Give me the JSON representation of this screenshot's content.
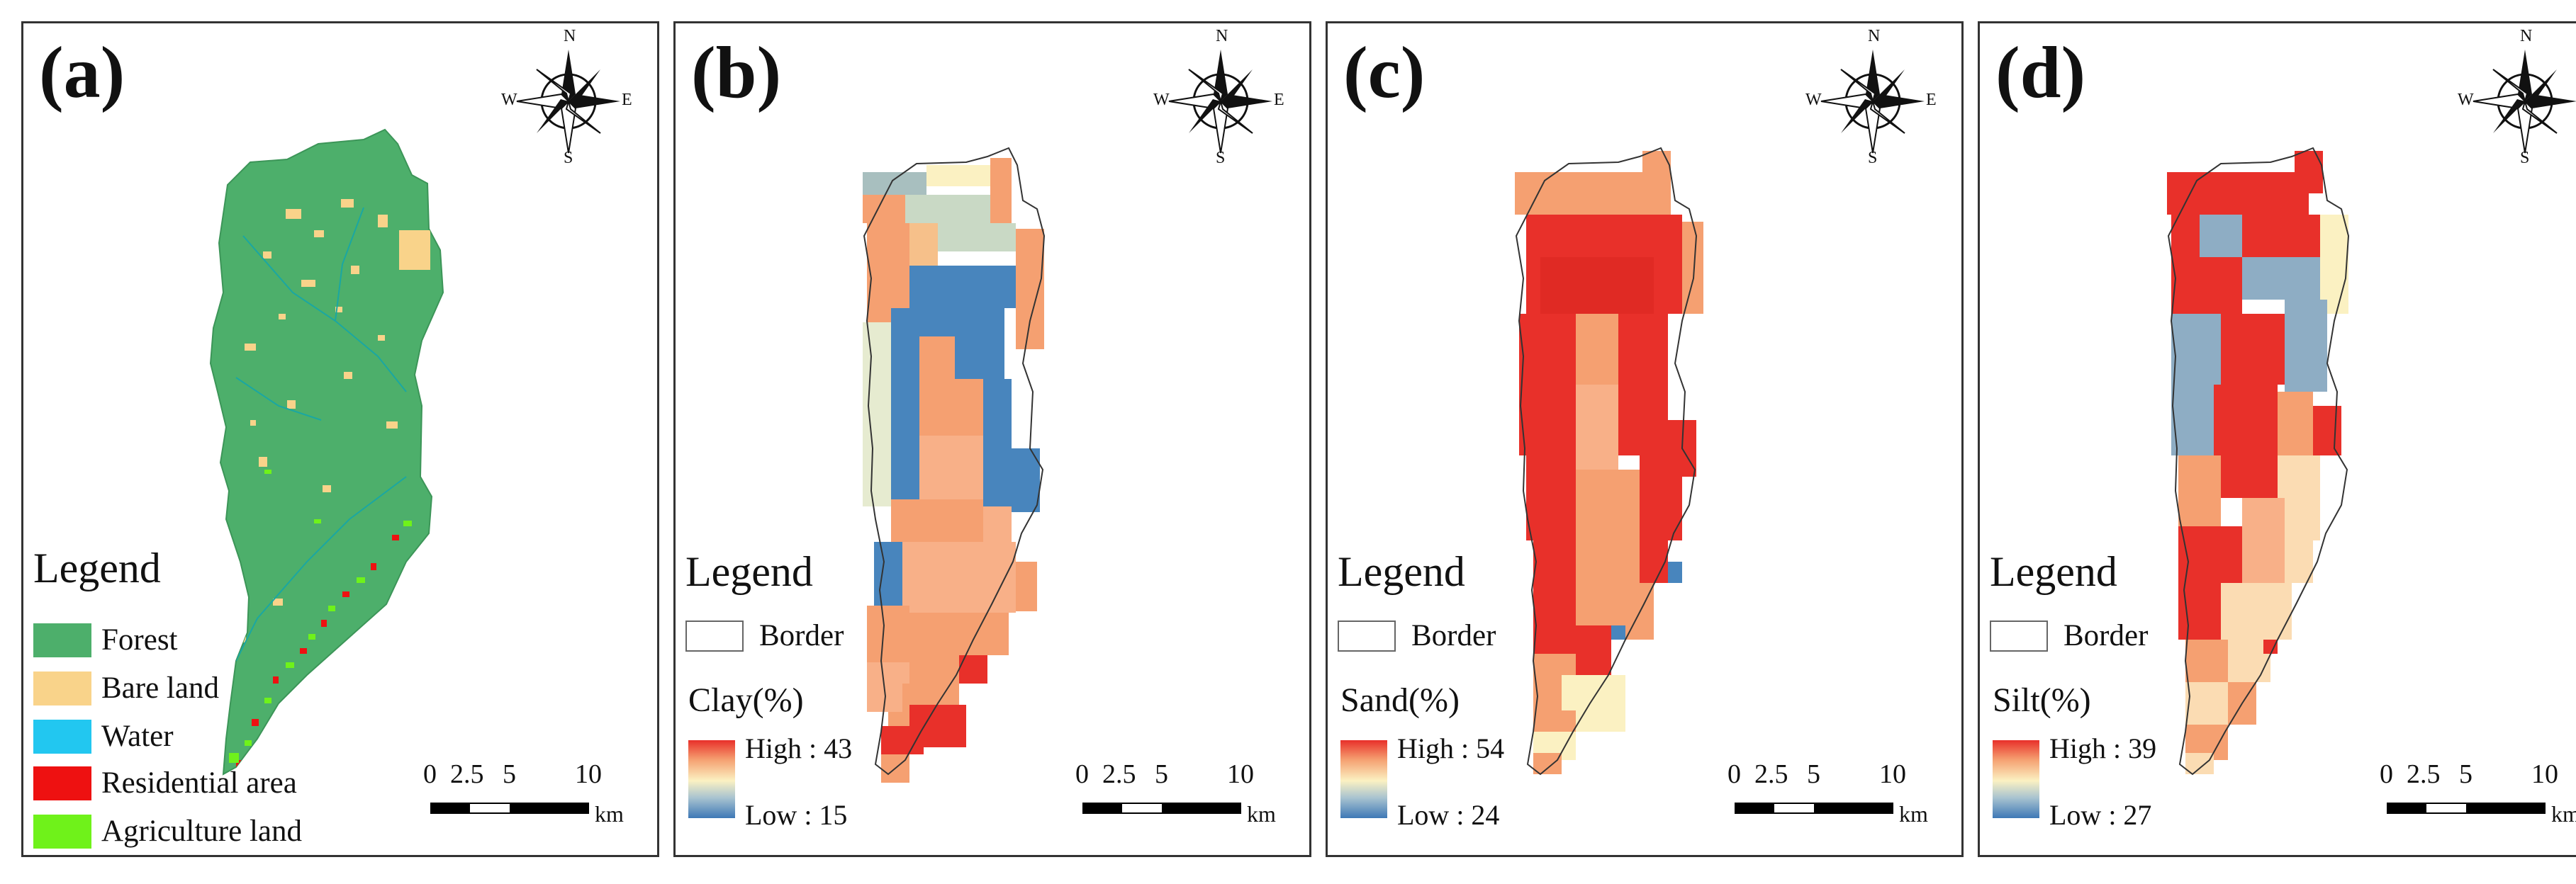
{
  "panels": [
    {
      "label": "(a)",
      "legend": {
        "title": "Legend",
        "classes": [
          {
            "name": "Forest",
            "color": "#4daf6b"
          },
          {
            "name": "Bare land",
            "color": "#f9d38a"
          },
          {
            "name": "Water",
            "color": "#22c7f0"
          },
          {
            "name": "Residential area",
            "color": "#ee1111"
          },
          {
            "name": "Agriculture land",
            "color": "#6ff21a"
          }
        ]
      }
    },
    {
      "label": "(b)",
      "legend": {
        "title": "Legend",
        "border_label": "Border",
        "variable": "Clay(%)",
        "high": "High : 43",
        "low": "Low : 15"
      }
    },
    {
      "label": "(c)",
      "legend": {
        "title": "Legend",
        "border_label": "Border",
        "variable": "Sand(%)",
        "high": "High : 54",
        "low": "Low : 24"
      }
    },
    {
      "label": "(d)",
      "legend": {
        "title": "Legend",
        "border_label": "Border",
        "variable": "Silt(%)",
        "high": "High : 39",
        "low": "Low : 27"
      }
    }
  ],
  "compass": {
    "n": "N",
    "s": "S",
    "e": "E",
    "w": "W"
  },
  "scale_bar": {
    "ticks": [
      "0",
      "2.5",
      "5",
      "10"
    ],
    "unit": "km"
  }
}
